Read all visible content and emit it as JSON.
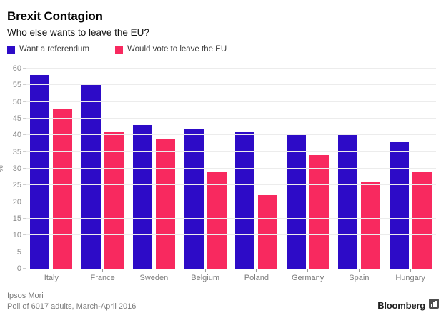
{
  "header": {
    "title": "Brexit Contagion",
    "subtitle": "Who else wants to leave the EU?"
  },
  "legend": [
    {
      "label": "Want a referendum",
      "color": "#2d0bc7"
    },
    {
      "label": "Would vote to leave the EU",
      "color": "#f8295f"
    }
  ],
  "chart_data": {
    "type": "bar",
    "categories": [
      "Italy",
      "France",
      "Sweden",
      "Belgium",
      "Poland",
      "Germany",
      "Spain",
      "Hungary"
    ],
    "series": [
      {
        "name": "Want a referendum",
        "color": "#2d0bc7",
        "values": [
          58,
          55,
          43,
          42,
          41,
          40,
          40,
          38
        ]
      },
      {
        "name": "Would vote to leave the EU",
        "color": "#f8295f",
        "values": [
          48,
          41,
          39,
          29,
          22,
          34,
          26,
          29
        ]
      }
    ],
    "title": "Brexit Contagion",
    "subtitle": "Who else wants to leave the EU?",
    "xlabel": "",
    "ylabel": "%",
    "ylim": [
      0,
      60
    ],
    "ytick_step": 5,
    "grid": true,
    "legend_position": "top"
  },
  "footer": {
    "source_line1": "Ipsos Mori",
    "source_line2": "Poll of 6017 adults, March-April 2016",
    "brand": "Bloomberg"
  },
  "colors": {
    "series_blue": "#2d0bc7",
    "series_pink": "#f8295f",
    "gridline": "#ececec",
    "axis_line": "#8f8f8f",
    "tick_text": "#8b8b8b"
  }
}
